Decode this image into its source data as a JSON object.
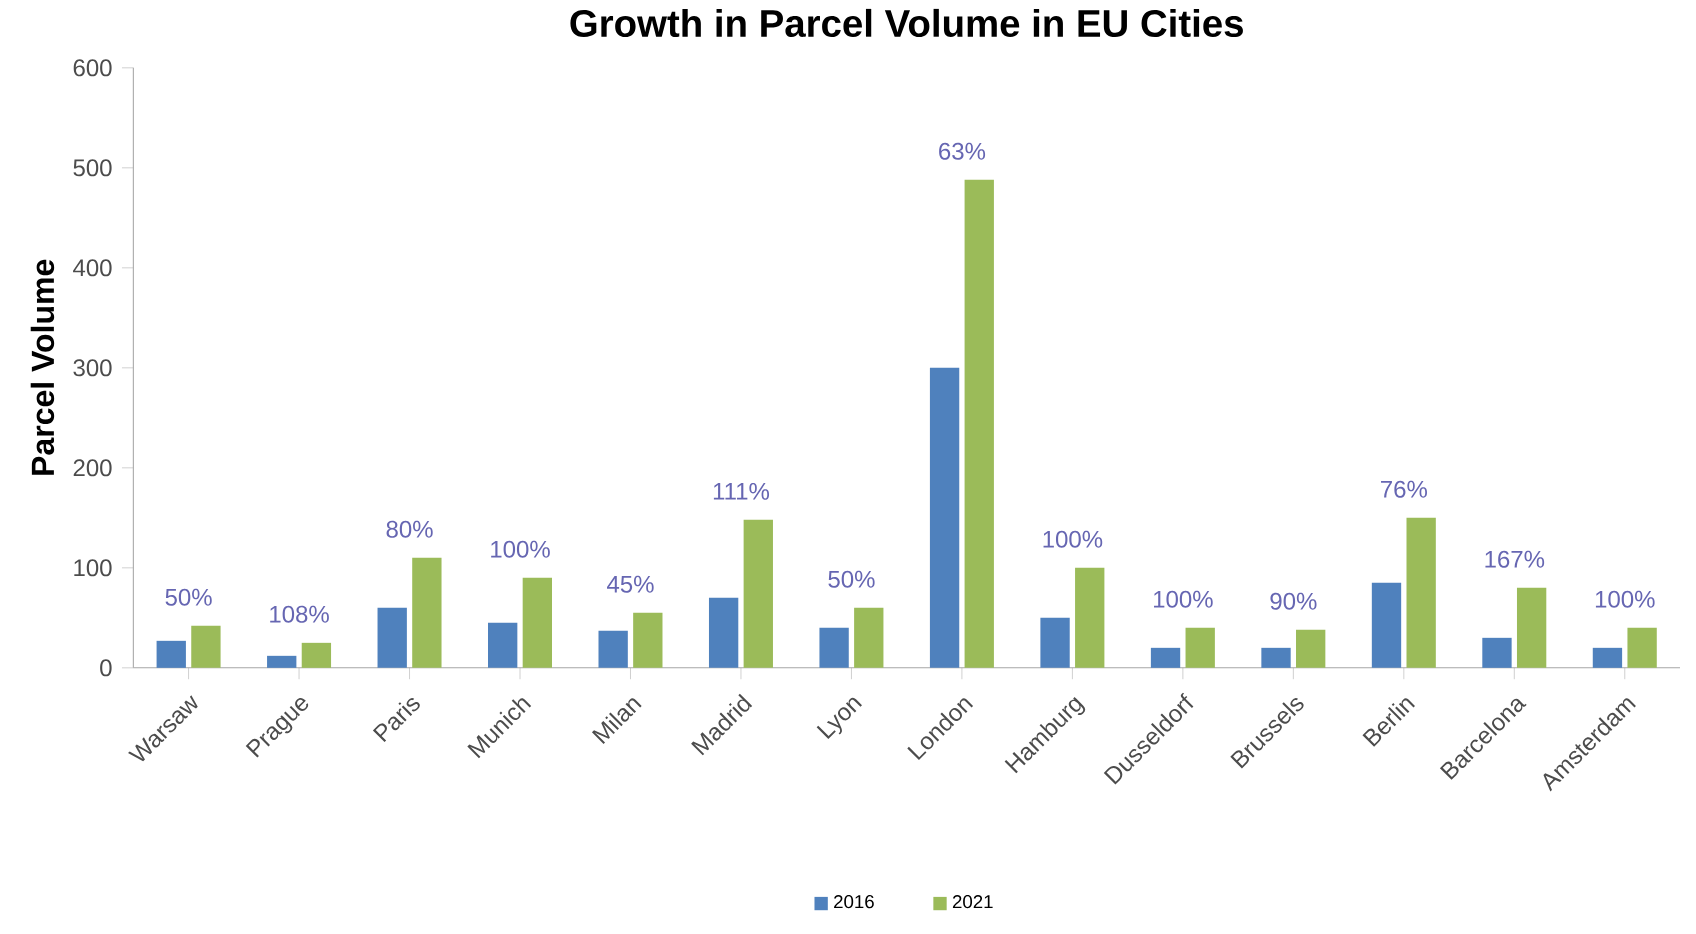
{
  "chart_data": {
    "type": "bar",
    "title": "Growth in Parcel Volume in EU Cities",
    "ylabel": "Parcel Volume",
    "categories": [
      "Warsaw",
      "Prague",
      "Paris",
      "Munich",
      "Milan",
      "Madrid",
      "Lyon",
      "London",
      "Hamburg",
      "Dusseldorf",
      "Brussels",
      "Berlin",
      "Barcelona",
      "Amsterdam"
    ],
    "series": [
      {
        "name": "2016",
        "color": "#4f81bd",
        "values": [
          27,
          12,
          60,
          45,
          37,
          70,
          40,
          300,
          50,
          20,
          20,
          85,
          30,
          20
        ]
      },
      {
        "name": "2021",
        "color": "#9bbb59",
        "values": [
          42,
          25,
          110,
          90,
          55,
          148,
          60,
          488,
          100,
          40,
          38,
          150,
          80,
          40
        ]
      }
    ],
    "ylim": [
      0,
      600
    ],
    "yticks": [
      0,
      100,
      200,
      300,
      400,
      500,
      600
    ],
    "grid": false,
    "legend": "bottom",
    "annotations": [
      {
        "text": "50%",
        "x": "Warsaw",
        "y": 42
      },
      {
        "text": "108%",
        "x": "Prague",
        "y": 25
      },
      {
        "text": "80%",
        "x": "Paris",
        "y": 110
      },
      {
        "text": "100%",
        "x": "Munich",
        "y": 90
      },
      {
        "text": "45%",
        "x": "Milan",
        "y": 55
      },
      {
        "text": "111%",
        "x": "Madrid",
        "y": 148
      },
      {
        "text": "50%",
        "x": "Lyon",
        "y": 60
      },
      {
        "text": "63%",
        "x": "London",
        "y": 488
      },
      {
        "text": "100%",
        "x": "Hamburg",
        "y": 100
      },
      {
        "text": "100%",
        "x": "Dusseldorf",
        "y": 40
      },
      {
        "text": "90%",
        "x": "Brussels",
        "y": 38
      },
      {
        "text": "76%",
        "x": "Berlin",
        "y": 150
      },
      {
        "text": "167%",
        "x": "Barcelona",
        "y": 80
      },
      {
        "text": "100%",
        "x": "Amsterdam",
        "y": 40
      }
    ]
  }
}
